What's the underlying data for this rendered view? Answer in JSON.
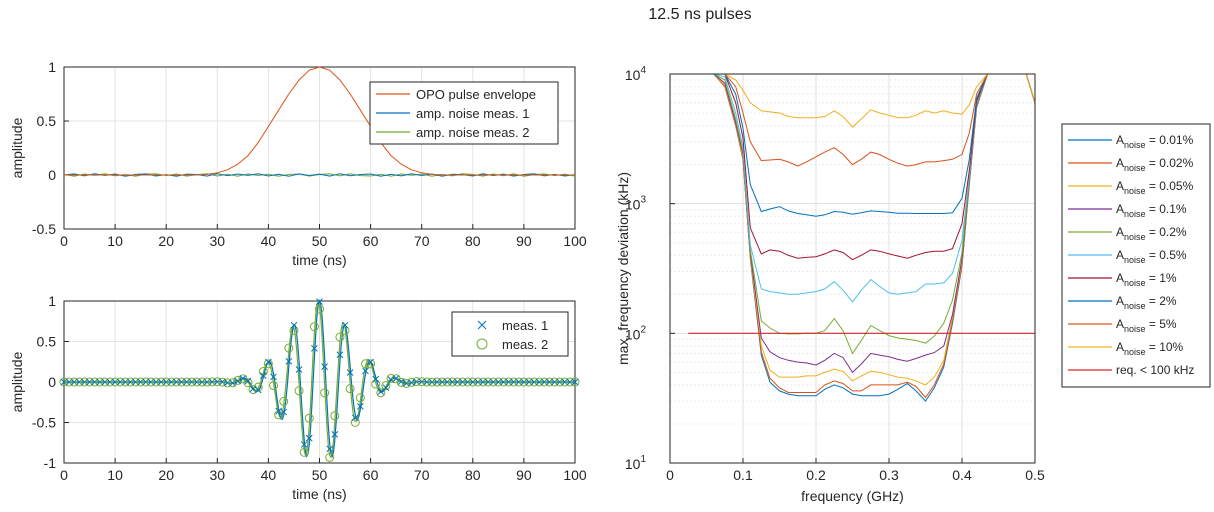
{
  "figure": {
    "title": "12.5 ns pulses"
  },
  "chart_data": [
    {
      "type": "line",
      "xlabel": "time (ns)",
      "ylabel": "amplitude",
      "xlim": [
        0,
        100
      ],
      "ylim": [
        -0.5,
        1
      ],
      "xticks": [
        "0",
        "10",
        "20",
        "30",
        "40",
        "50",
        "60",
        "70",
        "80",
        "90",
        "100"
      ],
      "yticks": [
        "-0.5",
        "0",
        "0.5",
        "1"
      ],
      "grid": true,
      "legend_position": "top-right",
      "x": [
        0,
        2,
        4,
        6,
        8,
        10,
        12,
        14,
        16,
        18,
        20,
        22,
        24,
        26,
        28,
        30,
        32,
        34,
        36,
        38,
        40,
        42,
        44,
        46,
        48,
        50,
        52,
        54,
        56,
        58,
        60,
        62,
        64,
        66,
        68,
        70,
        72,
        74,
        76,
        78,
        80,
        82,
        84,
        86,
        88,
        90,
        92,
        94,
        96,
        98,
        100
      ],
      "series": [
        {
          "name": "OPO pulse envelope",
          "color": "#d95319",
          "values": [
            0,
            0,
            0,
            0,
            0,
            0,
            0,
            0,
            0,
            0,
            0,
            0,
            0,
            0.001,
            0.006,
            0.02,
            0.048,
            0.1,
            0.18,
            0.3,
            0.45,
            0.6,
            0.75,
            0.88,
            0.97,
            1.0,
            0.97,
            0.88,
            0.75,
            0.6,
            0.45,
            0.3,
            0.18,
            0.1,
            0.048,
            0.02,
            0.006,
            0.001,
            0,
            0,
            0,
            0,
            0,
            0,
            0,
            0,
            0,
            0,
            0,
            0,
            0
          ]
        },
        {
          "name": "amp. noise meas. 1",
          "color": "#0072bd",
          "values": [
            0,
            0.01,
            -0.008,
            0.012,
            -0.005,
            0.009,
            -0.012,
            0.006,
            0.01,
            -0.009,
            0.004,
            -0.011,
            0.008,
            0.005,
            -0.01,
            0.012,
            -0.006,
            0.009,
            -0.004,
            0.011,
            -0.009,
            0.007,
            -0.012,
            0.01,
            -0.005,
            0.008,
            -0.01,
            0.012,
            -0.007,
            0.005,
            0.009,
            -0.011,
            0.006,
            -0.008,
            0.011,
            -0.005,
            0.009,
            -0.012,
            0.007,
            0.004,
            -0.009,
            0.012,
            -0.006,
            0.008,
            -0.01,
            0.005,
            0.011,
            -0.008,
            0.006,
            -0.009,
            0.004
          ]
        },
        {
          "name": "amp. noise meas. 2",
          "color": "#77ac30",
          "values": [
            0.006,
            -0.011,
            0.009,
            -0.004,
            0.012,
            -0.008,
            0.005,
            -0.012,
            0.008,
            0.011,
            -0.006,
            0.009,
            -0.01,
            0.004,
            0.012,
            -0.009,
            0.007,
            -0.011,
            0.01,
            -0.005,
            0.008,
            -0.012,
            0.006,
            0.009,
            -0.01,
            0.005,
            0.012,
            -0.008,
            0.011,
            -0.006,
            -0.009,
            0.007,
            -0.012,
            0.01,
            -0.004,
            0.009,
            -0.011,
            0.006,
            -0.008,
            0.012,
            0.005,
            -0.01,
            0.009,
            -0.007,
            0.011,
            -0.012,
            0.004,
            0.01,
            -0.006,
            0.008,
            -0.01
          ]
        }
      ]
    },
    {
      "type": "line",
      "xlabel": "time (ns)",
      "ylabel": "amplitude",
      "xlim": [
        0,
        100
      ],
      "ylim": [
        -1,
        1
      ],
      "xticks": [
        "0",
        "10",
        "20",
        "30",
        "40",
        "50",
        "60",
        "70",
        "80",
        "90",
        "100"
      ],
      "yticks": [
        "-1",
        "-0.5",
        "0",
        "0.5",
        "1"
      ],
      "grid": true,
      "legend_position": "top-right",
      "carrier_frequency_ghz": 0.2,
      "envelope_center_ns": 50,
      "envelope_width_ns": 6,
      "series": [
        {
          "name": "meas. 1",
          "marker": "x",
          "color": "#0072bd"
        },
        {
          "name": "meas. 2",
          "marker": "o",
          "color": "#77ac30"
        }
      ],
      "points_x": [
        0,
        1,
        2,
        3,
        4,
        5,
        6,
        7,
        8,
        9,
        10,
        11,
        12,
        13,
        14,
        15,
        16,
        17,
        18,
        19,
        20,
        21,
        22,
        23,
        24,
        25,
        26,
        27,
        28,
        29,
        30,
        31,
        32,
        33,
        34,
        35,
        36,
        37,
        38,
        39,
        40,
        41,
        42,
        43,
        44,
        45,
        46,
        47,
        48,
        49,
        50,
        51,
        52,
        53,
        54,
        55,
        56,
        57,
        58,
        59,
        60,
        61,
        62,
        63,
        64,
        65,
        66,
        67,
        68,
        69,
        70,
        71,
        72,
        73,
        74,
        75,
        76,
        77,
        78,
        79,
        80,
        81,
        82,
        83,
        84,
        85,
        86,
        87,
        88,
        89,
        90,
        91,
        92,
        93,
        94,
        95,
        96,
        97,
        98,
        99,
        100
      ]
    },
    {
      "type": "line",
      "xlabel": "frequency (GHz)",
      "ylabel": "max. frequency deviation (kHz)",
      "yscale": "log",
      "xlim": [
        0,
        0.5
      ],
      "ylim": [
        10,
        10000
      ],
      "xticks": [
        "0",
        "0.1",
        "0.2",
        "0.3",
        "0.4",
        "0.5"
      ],
      "yticks": [
        "10^1",
        "10^2",
        "10^3",
        "10^4"
      ],
      "grid": true,
      "legend_position": "outside-right",
      "x": [
        0.06,
        0.075,
        0.09,
        0.1,
        0.11,
        0.125,
        0.137,
        0.15,
        0.162,
        0.175,
        0.187,
        0.2,
        0.212,
        0.225,
        0.237,
        0.25,
        0.262,
        0.275,
        0.287,
        0.3,
        0.312,
        0.325,
        0.337,
        0.35,
        0.362,
        0.375,
        0.387,
        0.4,
        0.41,
        0.42,
        0.435,
        0.45
      ],
      "series": [
        {
          "name": "A_noise = 0.01%",
          "legend_main": "A",
          "legend_sub": "noise",
          "legend_tail": " = 0.01%",
          "color": "#0072bd",
          "values": [
            10000,
            8000,
            4000,
            2200,
            380,
            68,
            42,
            36,
            34,
            33,
            33,
            33,
            37,
            40,
            38,
            34,
            33,
            33,
            33,
            34,
            37,
            41,
            36,
            30,
            38,
            55,
            120,
            330,
            1400,
            5500,
            10000,
            10000
          ]
        },
        {
          "name": "A_noise = 0.02%",
          "legend_main": "A",
          "legend_sub": "noise",
          "legend_tail": " = 0.02%",
          "color": "#d95319",
          "values": [
            10000,
            8000,
            4000,
            2200,
            390,
            72,
            45,
            38,
            35,
            35,
            35,
            35,
            40,
            43,
            41,
            36,
            36,
            40,
            40,
            40,
            40,
            42,
            39,
            32,
            40,
            58,
            125,
            340,
            1450,
            5600,
            10000,
            10000
          ]
        },
        {
          "name": "A_noise = 0.05%",
          "legend_main": "A",
          "legend_sub": "noise",
          "legend_tail": " = 0.05%",
          "color": "#edb120",
          "values": [
            10000,
            8200,
            4100,
            2300,
            400,
            80,
            52,
            46,
            46,
            46,
            47,
            47,
            50,
            53,
            51,
            43,
            47,
            51,
            50,
            48,
            46,
            45,
            43,
            40,
            46,
            62,
            135,
            360,
            1500,
            5700,
            10000,
            10000
          ]
        },
        {
          "name": "A_noise = 0.1%",
          "legend_main": "A",
          "legend_sub": "noise",
          "legend_tail": " = 0.1%",
          "color": "#7e2f8e",
          "values": [
            10000,
            8500,
            4200,
            2400,
            420,
            92,
            72,
            65,
            62,
            60,
            59,
            57,
            62,
            70,
            65,
            50,
            58,
            70,
            68,
            66,
            63,
            61,
            64,
            68,
            71,
            80,
            140,
            380,
            1550,
            5800,
            10000,
            10000
          ]
        },
        {
          "name": "A_noise = 0.2%",
          "legend_main": "A",
          "legend_sub": "noise",
          "legend_tail": " = 0.2%",
          "color": "#77ac30",
          "values": [
            10000,
            9000,
            4500,
            2500,
            440,
            125,
            110,
            100,
            99,
            99,
            100,
            100,
            105,
            130,
            105,
            70,
            88,
            115,
            105,
            96,
            92,
            90,
            88,
            84,
            95,
            120,
            180,
            420,
            1600,
            5900,
            10000,
            10000
          ]
        },
        {
          "name": "A_noise = 0.5%",
          "legend_main": "A",
          "legend_sub": "noise",
          "legend_tail": " = 0.5%",
          "color": "#4dbeee",
          "values": [
            10000,
            9500,
            5000,
            2700,
            480,
            220,
            210,
            205,
            200,
            200,
            205,
            210,
            220,
            250,
            215,
            175,
            215,
            260,
            230,
            205,
            200,
            205,
            210,
            240,
            240,
            245,
            290,
            520,
            1650,
            6000,
            10000,
            10000
          ]
        },
        {
          "name": "A_noise = 1%",
          "legend_main": "A",
          "legend_sub": "noise",
          "legend_tail": " = 1%",
          "color": "#a2142f",
          "values": [
            10000,
            10000,
            6000,
            3200,
            650,
            410,
            440,
            430,
            400,
            380,
            385,
            390,
            410,
            440,
            420,
            370,
            400,
            440,
            430,
            410,
            395,
            380,
            400,
            420,
            430,
            430,
            450,
            700,
            1800,
            6200,
            10000,
            10000
          ]
        },
        {
          "name": "A_noise = 2%",
          "legend_main": "A",
          "legend_sub": "noise",
          "legend_tail": " = 2%",
          "color": "#0072bd",
          "values": [
            10000,
            10000,
            7000,
            3800,
            1400,
            870,
            910,
            950,
            880,
            840,
            820,
            800,
            820,
            870,
            860,
            830,
            850,
            880,
            870,
            860,
            845,
            845,
            840,
            840,
            840,
            840,
            850,
            1100,
            2200,
            6500,
            10000,
            10000
          ]
        },
        {
          "name": "A_noise = 5%",
          "legend_main": "A",
          "legend_sub": "noise",
          "legend_tail": " = 5%",
          "color": "#d95319",
          "values": [
            10000,
            10000,
            8000,
            5000,
            3000,
            2150,
            2170,
            2200,
            2100,
            1950,
            2100,
            2300,
            2500,
            2700,
            2400,
            2000,
            2200,
            2500,
            2400,
            2200,
            2050,
            1950,
            2000,
            2100,
            2100,
            2150,
            2200,
            2400,
            3500,
            7000,
            10000,
            10000
          ]
        },
        {
          "name": "A_noise = 10%",
          "legend_main": "A",
          "legend_sub": "noise",
          "legend_tail": " = 10%",
          "color": "#edb120",
          "values": [
            10000,
            10000,
            9000,
            7500,
            6000,
            5200,
            5100,
            5000,
            4700,
            4600,
            4600,
            4600,
            4700,
            5200,
            4700,
            3900,
            4500,
            5300,
            5000,
            4800,
            4600,
            4600,
            4800,
            5200,
            5000,
            5200,
            5000,
            4900,
            5800,
            8000,
            10000,
            10000
          ]
        },
        {
          "name": "req. < 100 kHz",
          "color": "#d62728",
          "threshold": 100,
          "x_range": [
            0.025,
            0.5
          ]
        }
      ]
    }
  ]
}
